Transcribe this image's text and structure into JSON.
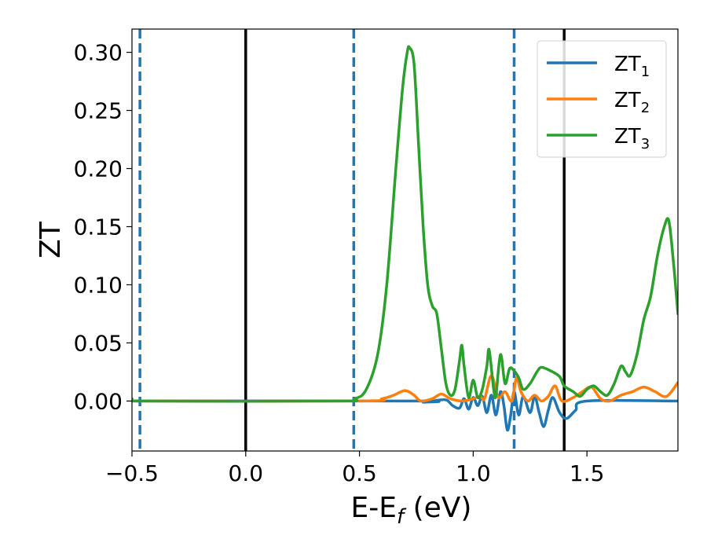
{
  "chart_data": {
    "type": "line",
    "xlabel": "E-E",
    "xlabel_sub": "f",
    "xlabel_unit": " (eV)",
    "ylabel": "ZT",
    "xlim": [
      -0.5,
      1.9
    ],
    "ylim": [
      -0.043,
      0.32
    ],
    "xticks": [
      -0.5,
      0.0,
      0.5,
      1.0,
      1.5
    ],
    "xtick_labels": [
      "−0.5",
      "0.0",
      "0.5",
      "1.0",
      "1.5"
    ],
    "yticks": [
      0.0,
      0.05,
      0.1,
      0.15,
      0.2,
      0.25,
      0.3
    ],
    "ytick_labels": [
      "0.00",
      "0.05",
      "0.10",
      "0.15",
      "0.20",
      "0.25",
      "0.30"
    ],
    "grid": false,
    "legend_position": "top-right",
    "vlines": [
      {
        "x": -0.465,
        "style": "dashed",
        "color": "#1f77b4"
      },
      {
        "x": 0.0,
        "style": "solid",
        "color": "#000000"
      },
      {
        "x": 0.475,
        "style": "dashed",
        "color": "#1f77b4"
      },
      {
        "x": 1.18,
        "style": "dashed",
        "color": "#1f77b4"
      },
      {
        "x": 1.4,
        "style": "solid",
        "color": "#000000"
      }
    ],
    "series": [
      {
        "name": "ZT",
        "name_sub": "1",
        "color": "#1f77b4",
        "points": [
          [
            -0.5,
            0.0
          ],
          [
            0.75,
            0.0
          ],
          [
            0.78,
            -0.001
          ],
          [
            0.82,
            0.0
          ],
          [
            0.88,
            0.001
          ],
          [
            0.91,
            -0.004
          ],
          [
            0.94,
            -0.006
          ],
          [
            0.96,
            0.002
          ],
          [
            0.98,
            -0.007
          ],
          [
            1.0,
            0.003
          ],
          [
            1.02,
            -0.004
          ],
          [
            1.04,
            0.004
          ],
          [
            1.06,
            -0.01
          ],
          [
            1.08,
            0.005
          ],
          [
            1.1,
            -0.012
          ],
          [
            1.12,
            0.008
          ],
          [
            1.135,
            -0.004
          ],
          [
            1.15,
            -0.025
          ],
          [
            1.165,
            -0.012
          ],
          [
            1.18,
            0.008
          ],
          [
            1.2,
            -0.012
          ],
          [
            1.22,
            0.004
          ],
          [
            1.25,
            -0.01
          ],
          [
            1.27,
            0.004
          ],
          [
            1.29,
            -0.01
          ],
          [
            1.31,
            -0.022
          ],
          [
            1.33,
            -0.008
          ],
          [
            1.35,
            0.003
          ],
          [
            1.38,
            -0.01
          ],
          [
            1.41,
            -0.015
          ],
          [
            1.45,
            -0.008
          ],
          [
            1.5,
            0.0
          ],
          [
            1.9,
            0.0
          ]
        ]
      },
      {
        "name": "ZT",
        "name_sub": "2",
        "color": "#ff7f0e",
        "points": [
          [
            -0.5,
            0.0
          ],
          [
            0.5,
            0.0
          ],
          [
            0.6,
            0.002
          ],
          [
            0.65,
            0.005
          ],
          [
            0.7,
            0.009
          ],
          [
            0.74,
            0.005
          ],
          [
            0.77,
            0.0
          ],
          [
            0.82,
            0.002
          ],
          [
            0.86,
            0.006
          ],
          [
            0.9,
            0.002
          ],
          [
            0.95,
            0.0
          ],
          [
            1.0,
            0.002
          ],
          [
            1.03,
            0.004
          ],
          [
            1.05,
            0.002
          ],
          [
            1.08,
            0.022
          ],
          [
            1.11,
            0.003
          ],
          [
            1.14,
            0.008
          ],
          [
            1.17,
            0.0
          ],
          [
            1.19,
            0.02
          ],
          [
            1.21,
            0.008
          ],
          [
            1.24,
            0.0
          ],
          [
            1.27,
            0.005
          ],
          [
            1.3,
            0.0
          ],
          [
            1.33,
            0.004
          ],
          [
            1.36,
            0.013
          ],
          [
            1.39,
            0.0
          ],
          [
            1.44,
            0.003
          ],
          [
            1.48,
            0.008
          ],
          [
            1.52,
            0.012
          ],
          [
            1.56,
            0.002
          ],
          [
            1.6,
            0.0
          ],
          [
            1.65,
            0.005
          ],
          [
            1.7,
            0.008
          ],
          [
            1.75,
            0.012
          ],
          [
            1.8,
            0.008
          ],
          [
            1.85,
            0.004
          ],
          [
            1.9,
            0.016
          ]
        ]
      },
      {
        "name": "ZT",
        "name_sub": "3",
        "color": "#2ca02c",
        "points": [
          [
            -0.5,
            0.002
          ],
          [
            -0.45,
            0.0
          ],
          [
            0.4,
            0.0
          ],
          [
            0.48,
            0.002
          ],
          [
            0.53,
            0.01
          ],
          [
            0.58,
            0.04
          ],
          [
            0.62,
            0.1
          ],
          [
            0.66,
            0.2
          ],
          [
            0.69,
            0.27
          ],
          [
            0.71,
            0.3
          ],
          [
            0.72,
            0.304
          ],
          [
            0.74,
            0.29
          ],
          [
            0.76,
            0.22
          ],
          [
            0.78,
            0.15
          ],
          [
            0.8,
            0.1
          ],
          [
            0.82,
            0.082
          ],
          [
            0.84,
            0.075
          ],
          [
            0.86,
            0.045
          ],
          [
            0.88,
            0.015
          ],
          [
            0.9,
            0.005
          ],
          [
            0.92,
            0.01
          ],
          [
            0.94,
            0.035
          ],
          [
            0.95,
            0.048
          ],
          [
            0.96,
            0.03
          ],
          [
            0.98,
            0.003
          ],
          [
            1.0,
            0.018
          ],
          [
            1.02,
            0.003
          ],
          [
            1.04,
            0.01
          ],
          [
            1.06,
            0.03
          ],
          [
            1.07,
            0.044
          ],
          [
            1.09,
            0.01
          ],
          [
            1.1,
            0.005
          ],
          [
            1.12,
            0.04
          ],
          [
            1.14,
            0.015
          ],
          [
            1.16,
            0.028
          ],
          [
            1.18,
            0.026
          ],
          [
            1.2,
            0.02
          ],
          [
            1.22,
            0.01
          ],
          [
            1.25,
            0.015
          ],
          [
            1.28,
            0.025
          ],
          [
            1.3,
            0.029
          ],
          [
            1.34,
            0.026
          ],
          [
            1.38,
            0.021
          ],
          [
            1.4,
            0.013
          ],
          [
            1.44,
            0.008
          ],
          [
            1.47,
            0.004
          ],
          [
            1.5,
            0.01
          ],
          [
            1.53,
            0.013
          ],
          [
            1.56,
            0.008
          ],
          [
            1.59,
            0.005
          ],
          [
            1.62,
            0.015
          ],
          [
            1.65,
            0.03
          ],
          [
            1.67,
            0.025
          ],
          [
            1.69,
            0.022
          ],
          [
            1.72,
            0.04
          ],
          [
            1.75,
            0.07
          ],
          [
            1.78,
            0.09
          ],
          [
            1.81,
            0.125
          ],
          [
            1.84,
            0.15
          ],
          [
            1.86,
            0.155
          ],
          [
            1.88,
            0.12
          ],
          [
            1.9,
            0.075
          ]
        ]
      }
    ]
  }
}
